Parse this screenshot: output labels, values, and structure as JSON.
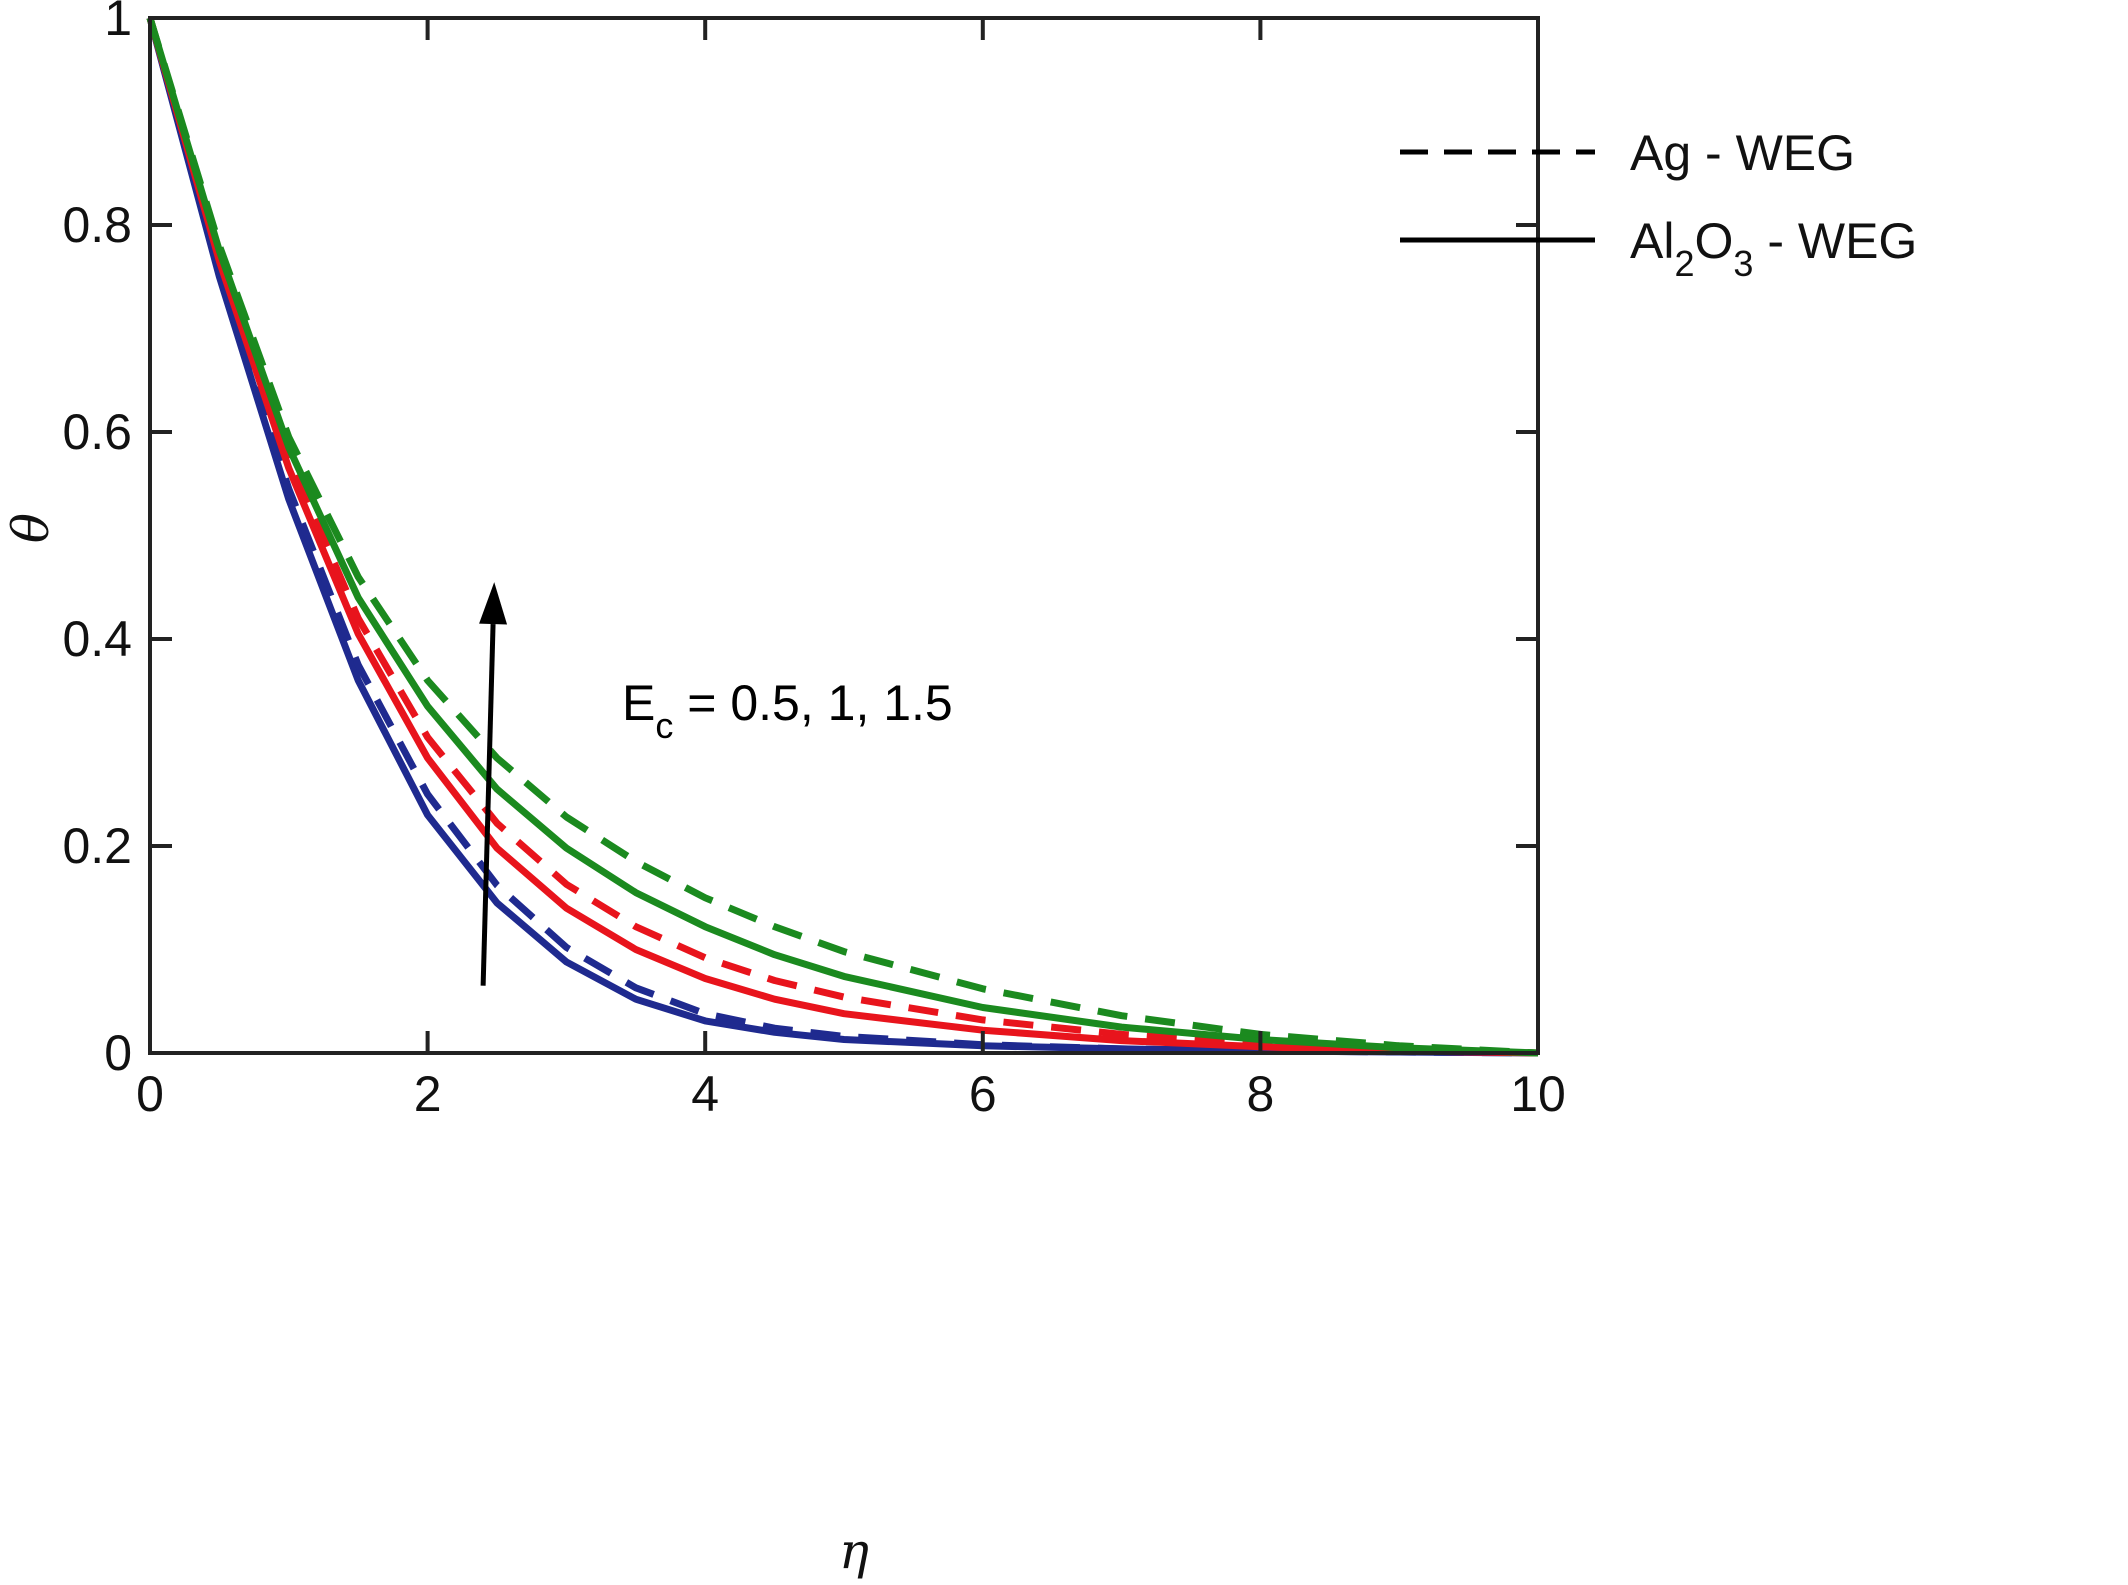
{
  "chart_data": {
    "type": "line",
    "xlabel": "η",
    "ylabel": "θ",
    "xlim": [
      0,
      10
    ],
    "ylim": [
      0,
      1
    ],
    "xticks": [
      0,
      2,
      4,
      6,
      8,
      10
    ],
    "xtick_labels": [
      "0",
      "2",
      "4",
      "6",
      "8",
      "10"
    ],
    "yticks": [
      0,
      0.2,
      0.4,
      0.6,
      0.8,
      1
    ],
    "ytick_labels": [
      "0",
      "0.2",
      "0.4",
      "0.6",
      "0.8",
      "1"
    ],
    "grid": false,
    "legend_position": "top-right",
    "legend": [
      {
        "text": "Ag - WEG",
        "style": "dashed",
        "sub": ""
      },
      {
        "text_parts": [
          "Al",
          "2",
          "O",
          "3",
          " - WEG"
        ],
        "style": "solid"
      }
    ],
    "annotation": {
      "base": "E",
      "sub": "c",
      "rest": " = 0.5, 1, 1.5",
      "arrow_from": [
        2.4,
        0.065
      ],
      "arrow_to": [
        2.48,
        0.455
      ]
    },
    "x": [
      0,
      0.5,
      1,
      1.5,
      2,
      2.5,
      3,
      3.5,
      4,
      4.5,
      5,
      6,
      7,
      8,
      9,
      10
    ],
    "series": [
      {
        "color": "#1f2a8f",
        "style": "solid",
        "values": [
          1,
          0.75,
          0.535,
          0.36,
          0.23,
          0.145,
          0.088,
          0.052,
          0.031,
          0.02,
          0.013,
          0.007,
          0.004,
          0.002,
          0.001,
          0
        ]
      },
      {
        "color": "#1f2a8f",
        "style": "dashed",
        "values": [
          1,
          0.755,
          0.545,
          0.375,
          0.25,
          0.162,
          0.102,
          0.063,
          0.038,
          0.024,
          0.016,
          0.008,
          0.004,
          0.002,
          0.001,
          0
        ]
      },
      {
        "color": "#e8141c",
        "style": "solid",
        "values": [
          1,
          0.765,
          0.565,
          0.405,
          0.285,
          0.198,
          0.14,
          0.1,
          0.072,
          0.052,
          0.038,
          0.022,
          0.012,
          0.006,
          0.002,
          0
        ]
      },
      {
        "color": "#e8141c",
        "style": "dashed",
        "values": [
          1,
          0.77,
          0.575,
          0.42,
          0.305,
          0.222,
          0.163,
          0.122,
          0.092,
          0.07,
          0.054,
          0.032,
          0.018,
          0.009,
          0.003,
          0
        ]
      },
      {
        "color": "#1b8a1f",
        "style": "solid",
        "values": [
          1,
          0.775,
          0.585,
          0.44,
          0.335,
          0.255,
          0.198,
          0.155,
          0.122,
          0.095,
          0.074,
          0.044,
          0.025,
          0.013,
          0.005,
          0
        ]
      },
      {
        "color": "#1b8a1f",
        "style": "dashed",
        "values": [
          1,
          0.78,
          0.595,
          0.46,
          0.36,
          0.285,
          0.228,
          0.185,
          0.15,
          0.122,
          0.098,
          0.062,
          0.036,
          0.018,
          0.007,
          0
        ]
      }
    ]
  }
}
